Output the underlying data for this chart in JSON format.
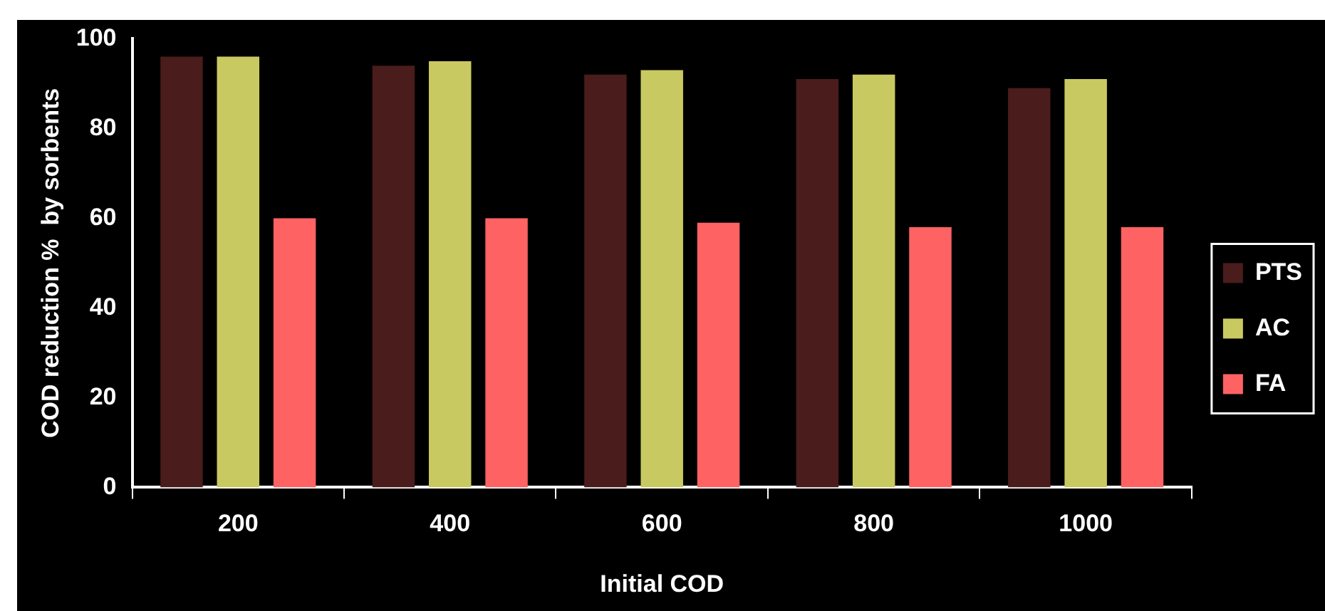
{
  "chart_data": {
    "type": "bar",
    "xlabel": "Initial COD",
    "ylabel": "COD reduction %  by sorbents",
    "categories": [
      "200",
      "400",
      "600",
      "800",
      "1000"
    ],
    "series": [
      {
        "name": "PTS",
        "color": "#4a1c1c",
        "values": [
          96,
          94,
          92,
          91,
          89
        ]
      },
      {
        "name": "AC",
        "color": "#c9c962",
        "values": [
          96,
          95,
          93,
          92,
          91
        ]
      },
      {
        "name": "FA",
        "color": "#ff6262",
        "values": [
          60,
          60,
          59,
          58,
          58
        ]
      }
    ],
    "ylim": [
      0,
      100
    ],
    "yticks": [
      0,
      20,
      40,
      60,
      80,
      100
    ],
    "grid": false,
    "legend": "right"
  }
}
